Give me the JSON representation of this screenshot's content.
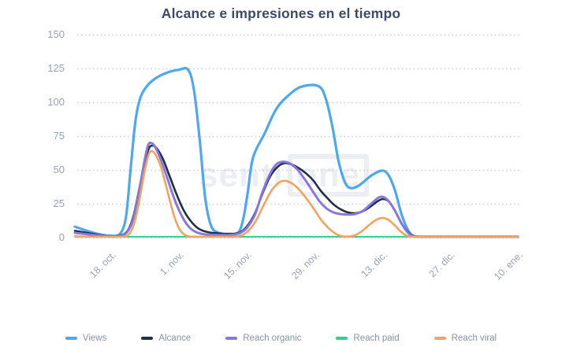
{
  "title": "Alcance e impresiones en el tiempo",
  "watermark": {
    "prefix": "senti",
    "boxed": "one"
  },
  "colors": {
    "views": "#4ea8ef",
    "alcance": "#222f44",
    "reach_organic": "#8678dc",
    "reach_paid": "#2bd18c",
    "reach_viral": "#f2a35f",
    "grid": "#cdd1d9",
    "title_text": "#3c4b66",
    "axis_text": "#99a2b3",
    "legend_text": "#8792a6"
  },
  "chart_data": {
    "type": "line",
    "title": "Alcance e impresiones en el tiempo",
    "xlabel": "",
    "ylabel": "",
    "grid": "dotted-horizontal",
    "legend_position": "bottom",
    "y_ticks": [
      0,
      25,
      50,
      75,
      100,
      125,
      150
    ],
    "y_domain": [
      0,
      150
    ],
    "x_tick_labels": [
      "18. oct.",
      "1. nov.",
      "15. nov.",
      "29. nov.",
      "13. dic.",
      "27. dic.",
      "10. ene."
    ],
    "x_tick_days": [
      0,
      14,
      28,
      42,
      56,
      70,
      84
    ],
    "x_domain_days": [
      -6.5,
      85.5
    ],
    "series": [
      {
        "name": "Views",
        "color": "#4ea8ef",
        "width": 3.2,
        "points": [
          [
            -6.5,
            8
          ],
          [
            -4,
            5
          ],
          [
            -1.5,
            2.5
          ],
          [
            0.5,
            1.5
          ],
          [
            2.6,
            2
          ],
          [
            4,
            14
          ],
          [
            5,
            50
          ],
          [
            6,
            86
          ],
          [
            7,
            103
          ],
          [
            8.4,
            112
          ],
          [
            10.3,
            118
          ],
          [
            12.6,
            122
          ],
          [
            15,
            124
          ],
          [
            16.9,
            124
          ],
          [
            18.1,
            109
          ],
          [
            19.3,
            72
          ],
          [
            20.4,
            30
          ],
          [
            21.6,
            9
          ],
          [
            23.2,
            3.5
          ],
          [
            25.5,
            2.5
          ],
          [
            27.3,
            4
          ],
          [
            28.3,
            14
          ],
          [
            29.2,
            33
          ],
          [
            30.3,
            59
          ],
          [
            32.7,
            77
          ],
          [
            35.1,
            95
          ],
          [
            37.6,
            105
          ],
          [
            40.3,
            111.5
          ],
          [
            43.8,
            112
          ],
          [
            45.3,
            103
          ],
          [
            46.7,
            82
          ],
          [
            48,
            56
          ],
          [
            49.4,
            40
          ],
          [
            50.7,
            36.5
          ],
          [
            52.4,
            39
          ],
          [
            54.8,
            46
          ],
          [
            57,
            49.5
          ],
          [
            58.4,
            45.5
          ],
          [
            59.7,
            34
          ],
          [
            61,
            17
          ],
          [
            62.4,
            5
          ],
          [
            63.7,
            1
          ],
          [
            65.5,
            0
          ],
          [
            70,
            0
          ],
          [
            75,
            0
          ],
          [
            80,
            0
          ],
          [
            85,
            0
          ]
        ]
      },
      {
        "name": "Alcance",
        "color": "#222f44",
        "width": 2.6,
        "points": [
          [
            -6.5,
            5
          ],
          [
            -4,
            3.5
          ],
          [
            -1.5,
            2
          ],
          [
            0.5,
            1
          ],
          [
            2.8,
            1.5
          ],
          [
            4.4,
            5
          ],
          [
            5.6,
            16
          ],
          [
            6.8,
            36
          ],
          [
            8,
            57
          ],
          [
            8.8,
            66
          ],
          [
            9.5,
            68
          ],
          [
            10.4,
            66
          ],
          [
            11.7,
            58
          ],
          [
            13,
            46
          ],
          [
            14.5,
            32
          ],
          [
            16,
            20
          ],
          [
            17.6,
            11.5
          ],
          [
            19.1,
            6.5
          ],
          [
            21,
            4
          ],
          [
            23.5,
            3
          ],
          [
            25.5,
            2.8
          ],
          [
            27.4,
            3.5
          ],
          [
            29,
            8
          ],
          [
            30.7,
            18
          ],
          [
            32.2,
            32
          ],
          [
            33.8,
            45
          ],
          [
            35.3,
            52
          ],
          [
            36.8,
            55
          ],
          [
            38.3,
            54
          ],
          [
            39.9,
            51
          ],
          [
            41.4,
            47
          ],
          [
            42.8,
            42
          ],
          [
            44.2,
            35
          ],
          [
            45.7,
            29
          ],
          [
            47.1,
            24
          ],
          [
            48.6,
            20.5
          ],
          [
            50,
            18.5
          ],
          [
            51.5,
            18
          ],
          [
            53,
            19.5
          ],
          [
            54.6,
            23
          ],
          [
            56.1,
            27
          ],
          [
            57.2,
            28.5
          ],
          [
            58.4,
            26.5
          ],
          [
            59.6,
            20
          ],
          [
            60.9,
            11
          ],
          [
            62.2,
            4.5
          ],
          [
            63.5,
            1
          ],
          [
            65.5,
            0
          ],
          [
            70,
            0
          ],
          [
            75,
            0
          ],
          [
            80,
            0
          ],
          [
            85,
            0
          ]
        ]
      },
      {
        "name": "Reach organic",
        "color": "#8678dc",
        "width": 3,
        "points": [
          [
            -6.5,
            3.5
          ],
          [
            -4,
            2.5
          ],
          [
            -1.5,
            1.5
          ],
          [
            0.5,
            0.8
          ],
          [
            2.8,
            1.2
          ],
          [
            4.3,
            4
          ],
          [
            5.5,
            13
          ],
          [
            6.7,
            33
          ],
          [
            7.9,
            57
          ],
          [
            8.6,
            68
          ],
          [
            9.2,
            70
          ],
          [
            10.1,
            67
          ],
          [
            11.2,
            58
          ],
          [
            12.5,
            45
          ],
          [
            13.9,
            30
          ],
          [
            15.3,
            18
          ],
          [
            16.8,
            9
          ],
          [
            18.3,
            4.5
          ],
          [
            20.1,
            2.5
          ],
          [
            22.5,
            2
          ],
          [
            25.5,
            2
          ],
          [
            27.4,
            3
          ],
          [
            29,
            7
          ],
          [
            30.7,
            17
          ],
          [
            32.2,
            33
          ],
          [
            33.8,
            47
          ],
          [
            35.1,
            54
          ],
          [
            36.3,
            56
          ],
          [
            37.8,
            55
          ],
          [
            39.4,
            50.5
          ],
          [
            41,
            43
          ],
          [
            42.5,
            35
          ],
          [
            44,
            27
          ],
          [
            45.5,
            21.5
          ],
          [
            47,
            18.5
          ],
          [
            48.5,
            17.3
          ],
          [
            50,
            17
          ],
          [
            51.5,
            17.5
          ],
          [
            53.1,
            20
          ],
          [
            54.7,
            25
          ],
          [
            56.2,
            29.5
          ],
          [
            57.2,
            30
          ],
          [
            58.3,
            27
          ],
          [
            59.6,
            20
          ],
          [
            60.9,
            11
          ],
          [
            62.2,
            4
          ],
          [
            63.5,
            0.8
          ],
          [
            65.5,
            0
          ],
          [
            70,
            0
          ],
          [
            75,
            0
          ],
          [
            80,
            0
          ],
          [
            85,
            0
          ]
        ]
      },
      {
        "name": "Reach paid",
        "color": "#2bd18c",
        "width": 2,
        "points": [
          [
            -6.5,
            0.3
          ],
          [
            0,
            0.3
          ],
          [
            10,
            0.3
          ],
          [
            20,
            0.3
          ],
          [
            30,
            0.3
          ],
          [
            40,
            0.3
          ],
          [
            50,
            0.3
          ],
          [
            60,
            0.3
          ],
          [
            70,
            0.3
          ],
          [
            80,
            0.3
          ],
          [
            85,
            0.3
          ]
        ]
      },
      {
        "name": "Reach viral",
        "color": "#f2a35f",
        "width": 2.6,
        "points": [
          [
            -6.5,
            1
          ],
          [
            -4,
            0.5
          ],
          [
            -1.5,
            0.2
          ],
          [
            1,
            0.1
          ],
          [
            3.5,
            0.5
          ],
          [
            4.8,
            3
          ],
          [
            5.8,
            11
          ],
          [
            6.8,
            27
          ],
          [
            7.8,
            47
          ],
          [
            8.7,
            61
          ],
          [
            9.4,
            64
          ],
          [
            10.2,
            61
          ],
          [
            11.1,
            54
          ],
          [
            12,
            43
          ],
          [
            13,
            29
          ],
          [
            14,
            16
          ],
          [
            15,
            7
          ],
          [
            16,
            2.5
          ],
          [
            17.2,
            0.7
          ],
          [
            18.5,
            0.2
          ],
          [
            21,
            0
          ],
          [
            24,
            0
          ],
          [
            26.5,
            0.3
          ],
          [
            28.2,
            2
          ],
          [
            29.6,
            6
          ],
          [
            31,
            13
          ],
          [
            32.5,
            24
          ],
          [
            34,
            34
          ],
          [
            35.4,
            40
          ],
          [
            36.7,
            42
          ],
          [
            38.1,
            40.5
          ],
          [
            39.7,
            36
          ],
          [
            41.3,
            29
          ],
          [
            42.9,
            21
          ],
          [
            44.4,
            13
          ],
          [
            45.9,
            7
          ],
          [
            47.3,
            3
          ],
          [
            48.6,
            1
          ],
          [
            49.8,
            0.7
          ],
          [
            51.2,
            1.5
          ],
          [
            52.7,
            4.5
          ],
          [
            54.2,
            9
          ],
          [
            55.7,
            13
          ],
          [
            57,
            14.5
          ],
          [
            58.3,
            13
          ],
          [
            59.6,
            9
          ],
          [
            60.8,
            4.5
          ],
          [
            62,
            1.5
          ],
          [
            63.3,
            0.2
          ],
          [
            65,
            0
          ],
          [
            70,
            0
          ],
          [
            75,
            0
          ],
          [
            80,
            0
          ],
          [
            85,
            0
          ]
        ]
      }
    ]
  }
}
